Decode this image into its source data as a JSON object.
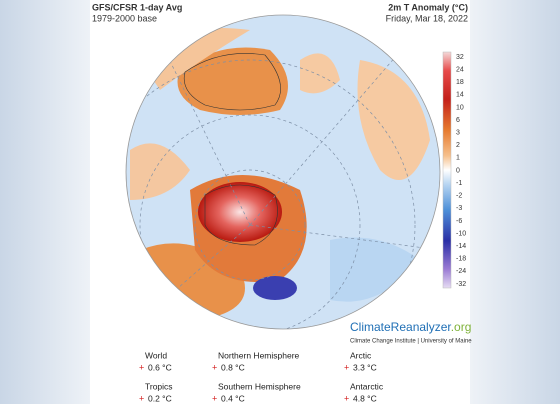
{
  "header": {
    "title": "GFS/CFSR 1-day Avg",
    "base": "1979-2000 base",
    "variable": "2m T Anomaly (°C)",
    "date": "Friday, Mar 18, 2022"
  },
  "colorbar": {
    "labels": [
      32,
      24,
      18,
      14,
      10,
      6,
      3,
      2,
      1,
      0,
      -1,
      -2,
      -3,
      -6,
      -10,
      -14,
      -18,
      -24,
      -32
    ]
  },
  "logo": {
    "name": "ClimateReanalyzer",
    "domain": ".org",
    "credit": "Climate Change Institute | University of Maine"
  },
  "stats": [
    {
      "label": "World",
      "sign": "+",
      "value": "0.6 °C"
    },
    {
      "label": "Northern Hemisphere",
      "sign": "+",
      "value": "0.8 °C"
    },
    {
      "label": "Arctic",
      "sign": "+",
      "value": "3.3 °C"
    },
    {
      "label": "Tropics",
      "sign": "+",
      "value": "0.2 °C"
    },
    {
      "label": "Southern Hemisphere",
      "sign": "+",
      "value": "0.4 °C"
    },
    {
      "label": "Antarctic",
      "sign": "+",
      "value": "4.8 °C"
    }
  ]
}
